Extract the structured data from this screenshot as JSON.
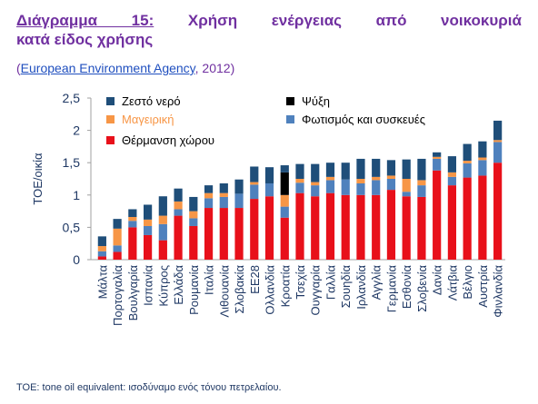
{
  "title": {
    "prefix": "Διάγραμμα 15:",
    "text": "Χρήση ενέργειας από νοικοκυριά",
    "line2": "κατά είδος χρήσης"
  },
  "source": {
    "open": "(",
    "link_text": "European Environment Agency",
    "tail": ", 2012)"
  },
  "footnote": "TOE: tone oil equivalent: ισοδύναμο ενός τόνου πετρελαίου.",
  "colors": {
    "heating": "#e8101a",
    "lighting": "#4f81bd",
    "cooking": "#f79646",
    "cooling": "#000000",
    "hotwater": "#1f4e79",
    "axis_text": "#1f3864"
  },
  "chart_data": {
    "type": "bar",
    "stacked": true,
    "ylabel": "TOE/οικία",
    "ylim": [
      0,
      2.5
    ],
    "yticks": [
      "0",
      "0,5",
      "1",
      "1,5",
      "2",
      "2,5"
    ],
    "grid": false,
    "legend_placement": "top-left",
    "categories": [
      "Μάλτα",
      "Πορτογαλία",
      "Βουλγαρία",
      "Ισπανία",
      "Κύπρος",
      "Ελλάδα",
      "Ρουμανία",
      "Ιταλία",
      "Λιθουανία",
      "Σλοβακία",
      "ΕΕ28",
      "Ολλανδία",
      "Κροατία",
      "Τσεχία",
      "Ουγγαρία",
      "Γαλλία",
      "Σουηδία",
      "Ιρλανδία",
      "Αγγλία",
      "Γερμανία",
      "Εσθονία",
      "Σλοβενία",
      "Δανία",
      "Λάτβια",
      "Βέλγιο",
      "Αυστρία",
      "Φινλανδία"
    ],
    "series": [
      {
        "name": "Θέρμανση χώρου",
        "color_key": "heating",
        "values": [
          0.05,
          0.12,
          0.5,
          0.38,
          0.3,
          0.68,
          0.52,
          0.8,
          0.8,
          0.8,
          0.94,
          0.98,
          0.65,
          1.03,
          0.98,
          1.03,
          1.0,
          1.0,
          1.0,
          1.08,
          0.98,
          0.97,
          1.38,
          1.15,
          1.27,
          1.3,
          1.5
        ]
      },
      {
        "name": "Φωτισμός και συσκευές",
        "color_key": "lighting",
        "values": [
          0.08,
          0.1,
          0.1,
          0.14,
          0.25,
          0.1,
          0.12,
          0.15,
          0.17,
          0.22,
          0.22,
          0.2,
          0.17,
          0.16,
          0.17,
          0.2,
          0.24,
          0.18,
          0.23,
          0.17,
          0.07,
          0.18,
          0.18,
          0.13,
          0.22,
          0.24,
          0.32
        ]
      },
      {
        "name": "Μαγειρική",
        "color_key": "cooking",
        "values": [
          0.08,
          0.26,
          0.06,
          0.1,
          0.13,
          0.12,
          0.11,
          0.08,
          0.06,
          0.0,
          0.04,
          0.0,
          0.18,
          0.06,
          0.05,
          0.05,
          0.0,
          0.07,
          0.05,
          0.05,
          0.2,
          0.08,
          0.03,
          0.07,
          0.04,
          0.04,
          0.03
        ]
      },
      {
        "name": "Ψύξη",
        "color_key": "cooling",
        "values": [
          0.0,
          0.0,
          0.0,
          0.0,
          0.0,
          0.0,
          0.0,
          0.0,
          0.0,
          0.0,
          0.0,
          0.0,
          0.35,
          0.0,
          0.0,
          0.0,
          0.0,
          0.0,
          0.0,
          0.0,
          0.0,
          0.0,
          0.0,
          0.0,
          0.0,
          0.0,
          0.0
        ]
      },
      {
        "name": "Ζεστό νερό",
        "color_key": "hotwater",
        "values": [
          0.15,
          0.15,
          0.12,
          0.23,
          0.3,
          0.2,
          0.22,
          0.12,
          0.15,
          0.22,
          0.24,
          0.25,
          0.11,
          0.23,
          0.28,
          0.22,
          0.26,
          0.31,
          0.28,
          0.24,
          0.3,
          0.33,
          0.07,
          0.25,
          0.26,
          0.25,
          0.3
        ]
      }
    ],
    "legend": [
      {
        "label": "Ζεστό νερό",
        "color_key": "hotwater",
        "col": 0,
        "row": 0
      },
      {
        "label": "Ψύξη",
        "color_key": "cooling",
        "col": 1,
        "row": 0
      },
      {
        "label": "Μαγειρική",
        "color_key": "cooking",
        "col": 0,
        "row": 1,
        "text_color_key": "cooking"
      },
      {
        "label": "Φωτισμός και συσκευές",
        "color_key": "lighting",
        "col": 1,
        "row": 1
      },
      {
        "label": "Θέρμανση χώρου",
        "color_key": "heating",
        "col": 0,
        "row": 2
      }
    ]
  }
}
